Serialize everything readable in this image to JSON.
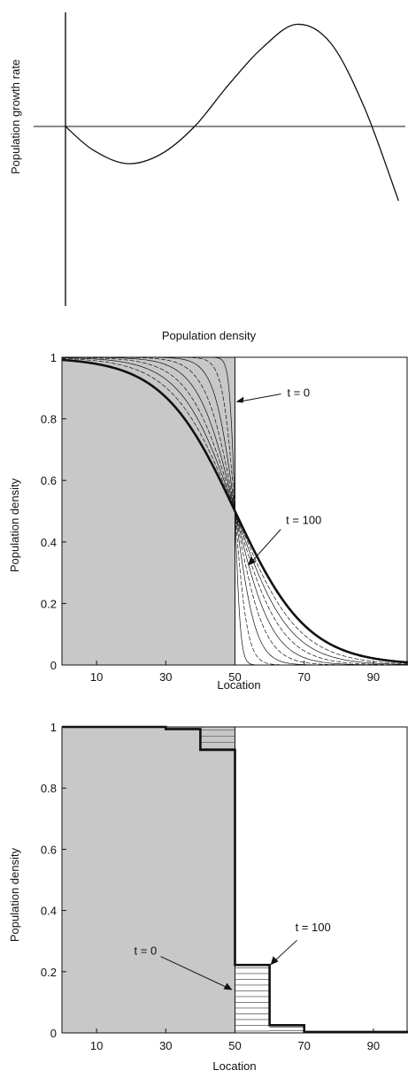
{
  "chart_data": [
    {
      "type": "line",
      "xlabel": "Population density",
      "ylabel": "Population growth rate",
      "axes": "no ticks; zero line drawn",
      "curve": "cubic growth-rate function with strong Allee effect",
      "x": [
        0,
        8,
        18,
        28,
        38,
        48,
        58,
        68,
        78,
        88,
        98
      ],
      "y": [
        0,
        -2.5,
        -4,
        -3,
        0,
        4.5,
        8.5,
        11,
        9,
        2,
        -8
      ]
    },
    {
      "type": "line",
      "xlabel": "Location",
      "ylabel": "Population density",
      "xticks": [
        "10",
        "30",
        "50",
        "70",
        "90"
      ],
      "xtick_values": [
        10,
        30,
        50,
        70,
        90
      ],
      "yticks": [
        "0",
        "0.2",
        "0.4",
        "0.6",
        "0.8",
        "1"
      ],
      "ytick_values": [
        0,
        0.2,
        0.4,
        0.6,
        0.8,
        1
      ],
      "xlim": [
        0,
        100
      ],
      "ylim": [
        0,
        1
      ],
      "initial_step_at": 50,
      "intermediate_profile_widths": [
        0.8,
        1.8,
        3,
        4.2,
        5.4,
        6.6,
        7.8,
        9
      ],
      "final_profile_width": 10.5,
      "annotations": [
        {
          "label": "t = 0",
          "target_x": 50,
          "target_y": 0.855
        },
        {
          "label": "t = 100",
          "target_x": 53.5,
          "target_y": 0.32
        }
      ]
    },
    {
      "type": "line",
      "xlabel": "Location",
      "ylabel": "Population density",
      "xticks": [
        "10",
        "30",
        "50",
        "70",
        "90"
      ],
      "xtick_values": [
        10,
        30,
        50,
        70,
        90
      ],
      "yticks": [
        "0",
        "0.2",
        "0.4",
        "0.6",
        "0.8",
        "1"
      ],
      "ytick_values": [
        0,
        0.2,
        0.4,
        0.6,
        0.8,
        1
      ],
      "xlim": [
        0,
        100
      ],
      "ylim": [
        0,
        1
      ],
      "initial_step_at": 50,
      "final_steps": [
        {
          "x0": 0,
          "x1": 30,
          "y": 1.0
        },
        {
          "x0": 30,
          "x1": 40,
          "y": 0.993
        },
        {
          "x0": 40,
          "x1": 50,
          "y": 0.925
        },
        {
          "x0": 50,
          "x1": 60,
          "y": 0.222
        },
        {
          "x0": 60,
          "x1": 70,
          "y": 0.025
        },
        {
          "x0": 70,
          "x1": 100,
          "y": 0.003
        }
      ],
      "annotations": [
        {
          "label": "t = 0",
          "target_x": 49.5,
          "target_y": 0.14
        },
        {
          "label": "t = 100",
          "target_x": 60,
          "target_y": 0.222
        }
      ]
    }
  ]
}
